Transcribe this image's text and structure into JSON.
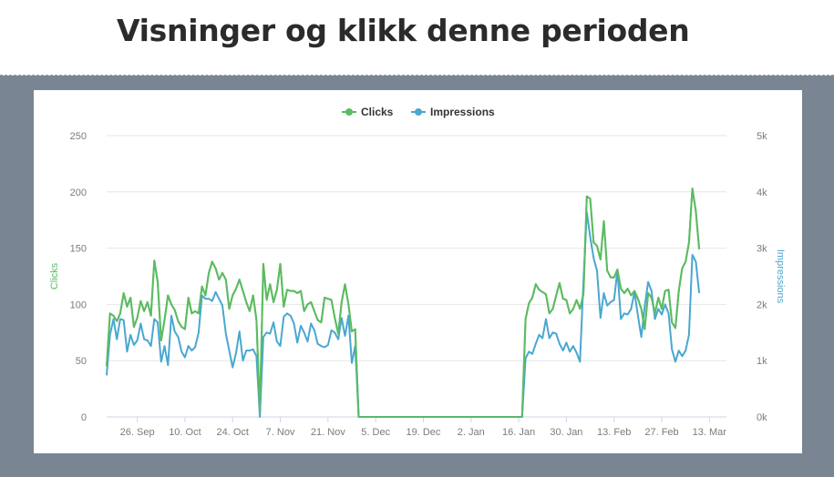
{
  "header": {
    "title": "Visninger og klikk denne perioden"
  },
  "colors": {
    "clicks": "#5cbb62",
    "impressions": "#4aa7cf",
    "grid": "#e6e6e6"
  },
  "chart_data": {
    "type": "line",
    "xlabel": "",
    "x_tick_labels": [
      "26. Sep",
      "10. Oct",
      "24. Oct",
      "7. Nov",
      "21. Nov",
      "5. Dec",
      "19. Dec",
      "2. Jan",
      "16. Jan",
      "30. Jan",
      "13. Feb",
      "27. Feb",
      "13. Mar"
    ],
    "x_range_days": [
      0,
      182
    ],
    "y_left": {
      "label": "Clicks",
      "range": [
        0,
        250
      ],
      "ticks": [
        0,
        50,
        100,
        150,
        200,
        250
      ],
      "tick_labels": [
        "0",
        "50",
        "100",
        "150",
        "200",
        "250"
      ]
    },
    "y_right": {
      "label": "Impressions",
      "range": [
        0,
        5000
      ],
      "ticks": [
        0,
        1000,
        2000,
        3000,
        4000,
        5000
      ],
      "tick_labels": [
        "0k",
        "1k",
        "2k",
        "3k",
        "4k",
        "5k"
      ]
    },
    "legend": {
      "position": "top-center"
    },
    "grid": true,
    "series": [
      {
        "name": "Clicks",
        "axis": "left",
        "points": [
          [
            0,
            45
          ],
          [
            1,
            92
          ],
          [
            2,
            90
          ],
          [
            3,
            85
          ],
          [
            4,
            92
          ],
          [
            5,
            110
          ],
          [
            6,
            98
          ],
          [
            7,
            106
          ],
          [
            8,
            80
          ],
          [
            9,
            88
          ],
          [
            10,
            103
          ],
          [
            11,
            94
          ],
          [
            12,
            102
          ],
          [
            13,
            90
          ],
          [
            14,
            139
          ],
          [
            15,
            120
          ],
          [
            16,
            68
          ],
          [
            17,
            86
          ],
          [
            18,
            108
          ],
          [
            19,
            100
          ],
          [
            20,
            95
          ],
          [
            21,
            85
          ],
          [
            22,
            80
          ],
          [
            23,
            78
          ],
          [
            24,
            106
          ],
          [
            25,
            92
          ],
          [
            26,
            94
          ],
          [
            27,
            92
          ],
          [
            28,
            116
          ],
          [
            29,
            108
          ],
          [
            30,
            128
          ],
          [
            31,
            138
          ],
          [
            32,
            132
          ],
          [
            33,
            122
          ],
          [
            34,
            128
          ],
          [
            35,
            122
          ],
          [
            36,
            96
          ],
          [
            37,
            108
          ],
          [
            38,
            114
          ],
          [
            39,
            122
          ],
          [
            40,
            112
          ],
          [
            41,
            102
          ],
          [
            42,
            94
          ],
          [
            43,
            108
          ],
          [
            44,
            86
          ],
          [
            45,
            5
          ],
          [
            46,
            136
          ],
          [
            47,
            104
          ],
          [
            48,
            118
          ],
          [
            49,
            102
          ],
          [
            50,
            113
          ],
          [
            51,
            136
          ],
          [
            52,
            98
          ],
          [
            53,
            113
          ],
          [
            54,
            112
          ],
          [
            55,
            112
          ],
          [
            56,
            110
          ],
          [
            57,
            112
          ],
          [
            58,
            94
          ],
          [
            59,
            100
          ],
          [
            60,
            102
          ],
          [
            61,
            94
          ],
          [
            62,
            86
          ],
          [
            63,
            84
          ],
          [
            64,
            106
          ],
          [
            65,
            105
          ],
          [
            66,
            104
          ],
          [
            67,
            88
          ],
          [
            68,
            74
          ],
          [
            69,
            102
          ],
          [
            70,
            118
          ],
          [
            71,
            100
          ],
          [
            72,
            76
          ],
          [
            73,
            78
          ],
          [
            74,
            0
          ],
          [
            75,
            0
          ],
          [
            122,
            0
          ],
          [
            123,
            87
          ],
          [
            124,
            101
          ],
          [
            125,
            106
          ],
          [
            126,
            118
          ],
          [
            127,
            113
          ],
          [
            128,
            111
          ],
          [
            129,
            109
          ],
          [
            130,
            92
          ],
          [
            131,
            96
          ],
          [
            132,
            108
          ],
          [
            133,
            119
          ],
          [
            134,
            105
          ],
          [
            135,
            104
          ],
          [
            136,
            92
          ],
          [
            137,
            96
          ],
          [
            138,
            104
          ],
          [
            139,
            96
          ],
          [
            140,
            109
          ],
          [
            141,
            196
          ],
          [
            142,
            194
          ],
          [
            143,
            155
          ],
          [
            144,
            152
          ],
          [
            145,
            140
          ],
          [
            146,
            174
          ],
          [
            147,
            130
          ],
          [
            148,
            124
          ],
          [
            149,
            124
          ],
          [
            150,
            131
          ],
          [
            151,
            114
          ],
          [
            152,
            110
          ],
          [
            153,
            114
          ],
          [
            154,
            108
          ],
          [
            155,
            112
          ],
          [
            156,
            105
          ],
          [
            157,
            96
          ],
          [
            158,
            78
          ],
          [
            159,
            110
          ],
          [
            160,
            106
          ],
          [
            161,
            92
          ],
          [
            162,
            106
          ],
          [
            163,
            96
          ],
          [
            164,
            112
          ],
          [
            165,
            113
          ],
          [
            166,
            84
          ],
          [
            167,
            79
          ],
          [
            168,
            112
          ],
          [
            169,
            132
          ],
          [
            170,
            138
          ],
          [
            171,
            155
          ],
          [
            172,
            203
          ],
          [
            173,
            183
          ],
          [
            174,
            149
          ]
        ]
      },
      {
        "name": "Impressions",
        "axis": "right",
        "points": [
          [
            0,
            740
          ],
          [
            1,
            1460
          ],
          [
            2,
            1740
          ],
          [
            3,
            1380
          ],
          [
            4,
            1740
          ],
          [
            5,
            1720
          ],
          [
            6,
            1160
          ],
          [
            7,
            1460
          ],
          [
            8,
            1280
          ],
          [
            9,
            1360
          ],
          [
            10,
            1660
          ],
          [
            11,
            1380
          ],
          [
            12,
            1360
          ],
          [
            13,
            1260
          ],
          [
            14,
            1740
          ],
          [
            15,
            1680
          ],
          [
            16,
            980
          ],
          [
            17,
            1260
          ],
          [
            18,
            920
          ],
          [
            19,
            1800
          ],
          [
            20,
            1520
          ],
          [
            21,
            1420
          ],
          [
            22,
            1160
          ],
          [
            23,
            1060
          ],
          [
            24,
            1260
          ],
          [
            25,
            1180
          ],
          [
            26,
            1240
          ],
          [
            27,
            1500
          ],
          [
            28,
            2160
          ],
          [
            29,
            2100
          ],
          [
            30,
            2100
          ],
          [
            31,
            2060
          ],
          [
            32,
            2220
          ],
          [
            33,
            2100
          ],
          [
            34,
            1980
          ],
          [
            35,
            1480
          ],
          [
            36,
            1180
          ],
          [
            37,
            880
          ],
          [
            38,
            1140
          ],
          [
            39,
            1520
          ],
          [
            40,
            1000
          ],
          [
            41,
            1180
          ],
          [
            42,
            1180
          ],
          [
            43,
            1200
          ],
          [
            44,
            1080
          ],
          [
            45,
            0
          ],
          [
            46,
            1420
          ],
          [
            47,
            1500
          ],
          [
            48,
            1480
          ],
          [
            49,
            1680
          ],
          [
            50,
            1340
          ],
          [
            51,
            1260
          ],
          [
            52,
            1780
          ],
          [
            53,
            1840
          ],
          [
            54,
            1800
          ],
          [
            55,
            1660
          ],
          [
            56,
            1320
          ],
          [
            57,
            1620
          ],
          [
            58,
            1500
          ],
          [
            59,
            1340
          ],
          [
            60,
            1660
          ],
          [
            61,
            1540
          ],
          [
            62,
            1300
          ],
          [
            63,
            1260
          ],
          [
            64,
            1240
          ],
          [
            65,
            1280
          ],
          [
            66,
            1540
          ],
          [
            67,
            1500
          ],
          [
            68,
            1380
          ],
          [
            69,
            1760
          ],
          [
            70,
            1440
          ],
          [
            71,
            1800
          ],
          [
            72,
            960
          ],
          [
            73,
            1260
          ],
          [
            74,
            0
          ],
          [
            75,
            0
          ],
          [
            122,
            0
          ],
          [
            123,
            1040
          ],
          [
            124,
            1160
          ],
          [
            125,
            1120
          ],
          [
            126,
            1300
          ],
          [
            127,
            1460
          ],
          [
            128,
            1400
          ],
          [
            129,
            1740
          ],
          [
            130,
            1400
          ],
          [
            131,
            1500
          ],
          [
            132,
            1480
          ],
          [
            133,
            1300
          ],
          [
            134,
            1180
          ],
          [
            135,
            1320
          ],
          [
            136,
            1160
          ],
          [
            137,
            1260
          ],
          [
            138,
            1140
          ],
          [
            139,
            980
          ],
          [
            140,
            2400
          ],
          [
            141,
            3640
          ],
          [
            142,
            3200
          ],
          [
            143,
            2820
          ],
          [
            144,
            2600
          ],
          [
            145,
            1760
          ],
          [
            146,
            2200
          ],
          [
            147,
            1980
          ],
          [
            148,
            2040
          ],
          [
            149,
            2080
          ],
          [
            150,
            2600
          ],
          [
            151,
            1740
          ],
          [
            152,
            1840
          ],
          [
            153,
            1820
          ],
          [
            154,
            1920
          ],
          [
            155,
            2220
          ],
          [
            156,
            1800
          ],
          [
            157,
            1420
          ],
          [
            158,
            1960
          ],
          [
            159,
            2400
          ],
          [
            160,
            2240
          ],
          [
            161,
            1740
          ],
          [
            162,
            1920
          ],
          [
            163,
            1820
          ],
          [
            164,
            2000
          ],
          [
            165,
            1840
          ],
          [
            166,
            1200
          ],
          [
            167,
            980
          ],
          [
            168,
            1180
          ],
          [
            169,
            1080
          ],
          [
            170,
            1180
          ],
          [
            171,
            1460
          ],
          [
            172,
            2880
          ],
          [
            173,
            2760
          ],
          [
            174,
            2200
          ]
        ]
      }
    ]
  }
}
